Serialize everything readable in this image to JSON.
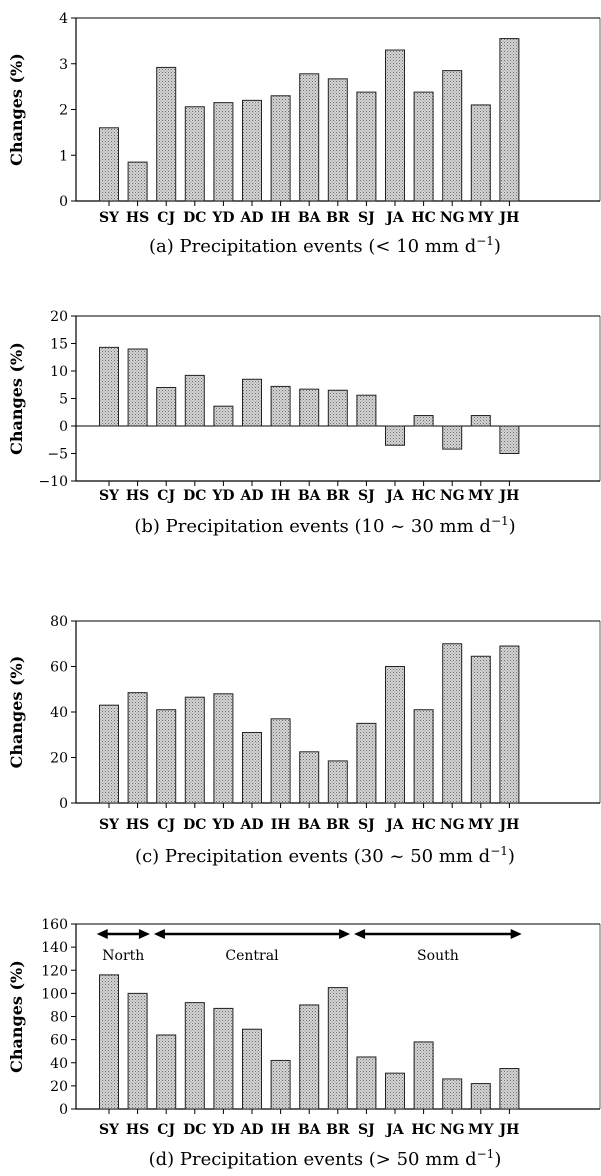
{
  "chart_data": [
    {
      "type": "bar",
      "categories": [
        "SY",
        "HS",
        "CJ",
        "DC",
        "YD",
        "AD",
        "IH",
        "BA",
        "BR",
        "SJ",
        "JA",
        "HC",
        "NG",
        "MY",
        "JH"
      ],
      "values": [
        1.6,
        0.85,
        2.92,
        2.06,
        2.15,
        2.2,
        2.3,
        2.78,
        2.67,
        2.38,
        3.3,
        2.38,
        2.85,
        2.1,
        3.55
      ],
      "ylabel": "Changes (%)",
      "ylim": [
        0,
        4
      ],
      "yticks": [
        0,
        1,
        2,
        3,
        4
      ],
      "caption_main": "(a) Precipitation events (< 10 mm d",
      "caption_sup": "−1",
      "caption_end": ")"
    },
    {
      "type": "bar",
      "categories": [
        "SY",
        "HS",
        "CJ",
        "DC",
        "YD",
        "AD",
        "IH",
        "BA",
        "BR",
        "SJ",
        "JA",
        "HC",
        "NG",
        "MY",
        "JH"
      ],
      "values": [
        14.3,
        14.0,
        7.0,
        9.2,
        3.6,
        8.5,
        7.2,
        6.7,
        6.5,
        5.6,
        -3.5,
        1.9,
        -4.2,
        1.9,
        -5.0
      ],
      "ylabel": "Changes (%)",
      "ylim": [
        -10,
        20
      ],
      "yticks": [
        -10,
        -5,
        0,
        5,
        10,
        15,
        20
      ],
      "caption_main": "(b) Precipitation events (10 ~ 30 mm d",
      "caption_sup": "−1",
      "caption_end": ")"
    },
    {
      "type": "bar",
      "categories": [
        "SY",
        "HS",
        "CJ",
        "DC",
        "YD",
        "AD",
        "IH",
        "BA",
        "BR",
        "SJ",
        "JA",
        "HC",
        "NG",
        "MY",
        "JH"
      ],
      "values": [
        43,
        48.5,
        41,
        46.5,
        48,
        31,
        37,
        22.5,
        18.5,
        35,
        60,
        41,
        70,
        64.5,
        69
      ],
      "ylabel": "Changes (%)",
      "ylim": [
        0,
        80
      ],
      "yticks": [
        0,
        20,
        40,
        60,
        80
      ],
      "caption_main": "(c) Precipitation events (30 ~ 50 mm d",
      "caption_sup": "−1",
      "caption_end": ")"
    },
    {
      "type": "bar",
      "categories": [
        "SY",
        "HS",
        "CJ",
        "DC",
        "YD",
        "AD",
        "IH",
        "BA",
        "BR",
        "SJ",
        "JA",
        "HC",
        "NG",
        "MY",
        "JH"
      ],
      "values": [
        116,
        100,
        64,
        92,
        87,
        69,
        42,
        90,
        105,
        45,
        31,
        58,
        26,
        22,
        35
      ],
      "ylabel": "Changes (%)",
      "ylim": [
        0,
        160
      ],
      "yticks": [
        0,
        20,
        40,
        60,
        80,
        100,
        120,
        140,
        160
      ],
      "caption_main": "(d) Precipitation events (> 50 mm d",
      "caption_sup": "−1",
      "caption_end": ")",
      "regions": [
        {
          "label": "North",
          "from": 0,
          "to": 1
        },
        {
          "label": "Central",
          "from": 2,
          "to": 8
        },
        {
          "label": "South",
          "from": 9,
          "to": 14
        }
      ]
    }
  ]
}
